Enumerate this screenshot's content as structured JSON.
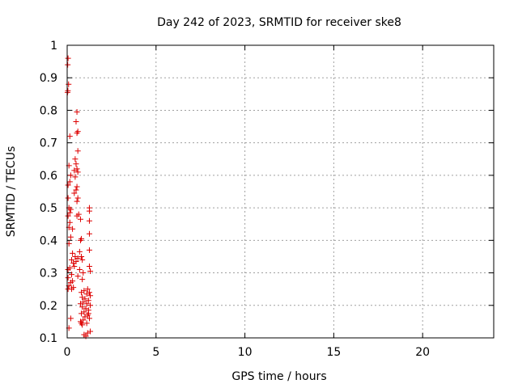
{
  "chart_data": {
    "type": "scatter",
    "title": "Day 242 of 2023, SRMTID for receiver ske8",
    "xlabel": "GPS time / hours",
    "ylabel": "SRMTID / TECUs",
    "xlim": [
      0,
      24
    ],
    "ylim": [
      0.1,
      1.0
    ],
    "grid": true,
    "marker": "+",
    "colors": {
      "points": "#dd0000",
      "axes": "#000000",
      "grid": "#a0a0a0"
    },
    "x_ticks": [
      0,
      5,
      10,
      15,
      20
    ],
    "x_tick_labels": [
      "0",
      "5",
      "10",
      "15",
      "20"
    ],
    "y_ticks": [
      0.1,
      0.2,
      0.3,
      0.4,
      0.5,
      0.6,
      0.7,
      0.8,
      0.9,
      1.0
    ],
    "y_tick_labels": [
      "0.1",
      "0.2",
      "0.3",
      "0.4",
      "0.5",
      "0.6",
      "0.7",
      "0.8",
      "0.9",
      "1"
    ],
    "series": [
      {
        "name": "SRMTID",
        "points": [
          [
            0.05,
            0.96
          ],
          [
            0.03,
            0.94
          ],
          [
            0.08,
            0.88
          ],
          [
            0.04,
            0.86
          ],
          [
            0.02,
            0.855
          ],
          [
            0.55,
            0.795
          ],
          [
            0.5,
            0.765
          ],
          [
            0.6,
            0.735
          ],
          [
            0.55,
            0.73
          ],
          [
            0.15,
            0.72
          ],
          [
            0.6,
            0.675
          ],
          [
            0.45,
            0.65
          ],
          [
            0.5,
            0.635
          ],
          [
            0.1,
            0.63
          ],
          [
            0.55,
            0.62
          ],
          [
            0.4,
            0.615
          ],
          [
            0.6,
            0.61
          ],
          [
            0.2,
            0.6
          ],
          [
            0.45,
            0.595
          ],
          [
            0.15,
            0.58
          ],
          [
            0.05,
            0.57
          ],
          [
            0.55,
            0.565
          ],
          [
            0.5,
            0.555
          ],
          [
            0.4,
            0.545
          ],
          [
            0.6,
            0.53
          ],
          [
            0.05,
            0.53
          ],
          [
            0.55,
            0.52
          ],
          [
            0.1,
            0.5
          ],
          [
            0.2,
            0.495
          ],
          [
            0.15,
            0.485
          ],
          [
            1.25,
            0.5
          ],
          [
            1.25,
            0.49
          ],
          [
            0.65,
            0.48
          ],
          [
            0.55,
            0.475
          ],
          [
            0.05,
            0.475
          ],
          [
            0.75,
            0.465
          ],
          [
            1.25,
            0.46
          ],
          [
            0.15,
            0.455
          ],
          [
            0.1,
            0.44
          ],
          [
            0.3,
            0.435
          ],
          [
            1.25,
            0.42
          ],
          [
            0.2,
            0.41
          ],
          [
            0.75,
            0.4
          ],
          [
            0.8,
            0.405
          ],
          [
            0.1,
            0.39
          ],
          [
            1.25,
            0.37
          ],
          [
            0.3,
            0.36
          ],
          [
            0.7,
            0.365
          ],
          [
            0.45,
            0.35
          ],
          [
            0.8,
            0.35
          ],
          [
            0.25,
            0.34
          ],
          [
            0.6,
            0.345
          ],
          [
            0.85,
            0.34
          ],
          [
            0.35,
            0.33
          ],
          [
            0.5,
            0.335
          ],
          [
            1.25,
            0.32
          ],
          [
            0.15,
            0.315
          ],
          [
            0.05,
            0.31
          ],
          [
            0.4,
            0.32
          ],
          [
            0.7,
            0.31
          ],
          [
            1.3,
            0.305
          ],
          [
            0.9,
            0.3
          ],
          [
            0.25,
            0.295
          ],
          [
            0.6,
            0.29
          ],
          [
            0.05,
            0.285
          ],
          [
            0.85,
            0.28
          ],
          [
            0.3,
            0.275
          ],
          [
            0.2,
            0.27
          ],
          [
            0.1,
            0.26
          ],
          [
            0.35,
            0.255
          ],
          [
            0.25,
            0.25
          ],
          [
            0.05,
            0.25
          ],
          [
            1.15,
            0.25
          ],
          [
            0.95,
            0.245
          ],
          [
            1.25,
            0.24
          ],
          [
            0.8,
            0.24
          ],
          [
            1.1,
            0.235
          ],
          [
            1.3,
            0.23
          ],
          [
            0.85,
            0.225
          ],
          [
            1.0,
            0.22
          ],
          [
            1.2,
            0.215
          ],
          [
            0.9,
            0.21
          ],
          [
            1.1,
            0.205
          ],
          [
            0.75,
            0.205
          ],
          [
            1.3,
            0.2
          ],
          [
            0.85,
            0.195
          ],
          [
            1.05,
            0.19
          ],
          [
            1.2,
            0.185
          ],
          [
            0.95,
            0.18
          ],
          [
            0.8,
            0.175
          ],
          [
            1.15,
            0.17
          ],
          [
            1.0,
            0.165
          ],
          [
            1.25,
            0.16
          ],
          [
            0.9,
            0.155
          ],
          [
            0.75,
            0.15
          ],
          [
            0.2,
            0.16
          ],
          [
            1.1,
            0.145
          ],
          [
            0.85,
            0.14
          ],
          [
            0.1,
            0.13
          ],
          [
            1.3,
            0.12
          ],
          [
            1.15,
            0.115
          ],
          [
            0.95,
            0.11
          ],
          [
            1.05,
            0.105
          ],
          [
            0.8,
            0.145
          ],
          [
            1.2,
            0.175
          ]
        ]
      }
    ]
  }
}
